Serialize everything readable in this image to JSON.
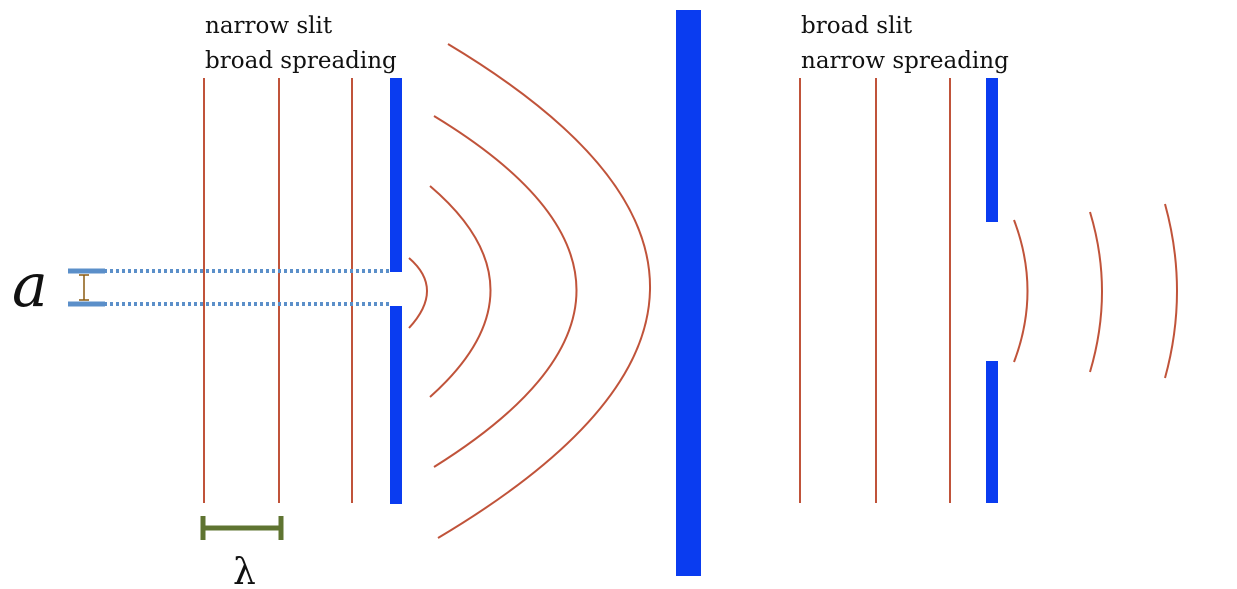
{
  "left_panel": {
    "caption_line1": "narrow slit",
    "caption_line2": "broad spreading"
  },
  "right_panel": {
    "caption_line1": "broad slit",
    "caption_line2": "narrow spreading"
  },
  "labels": {
    "slit_width_symbol": "a",
    "wavelength_symbol": "λ"
  },
  "colors": {
    "wavefront": "#c0533a",
    "barrier": "#0a3cf0",
    "slit_marker": "#5b8fc9",
    "wavelength_bar": "#5f7431",
    "a_bracket": "#8a5a10"
  }
}
